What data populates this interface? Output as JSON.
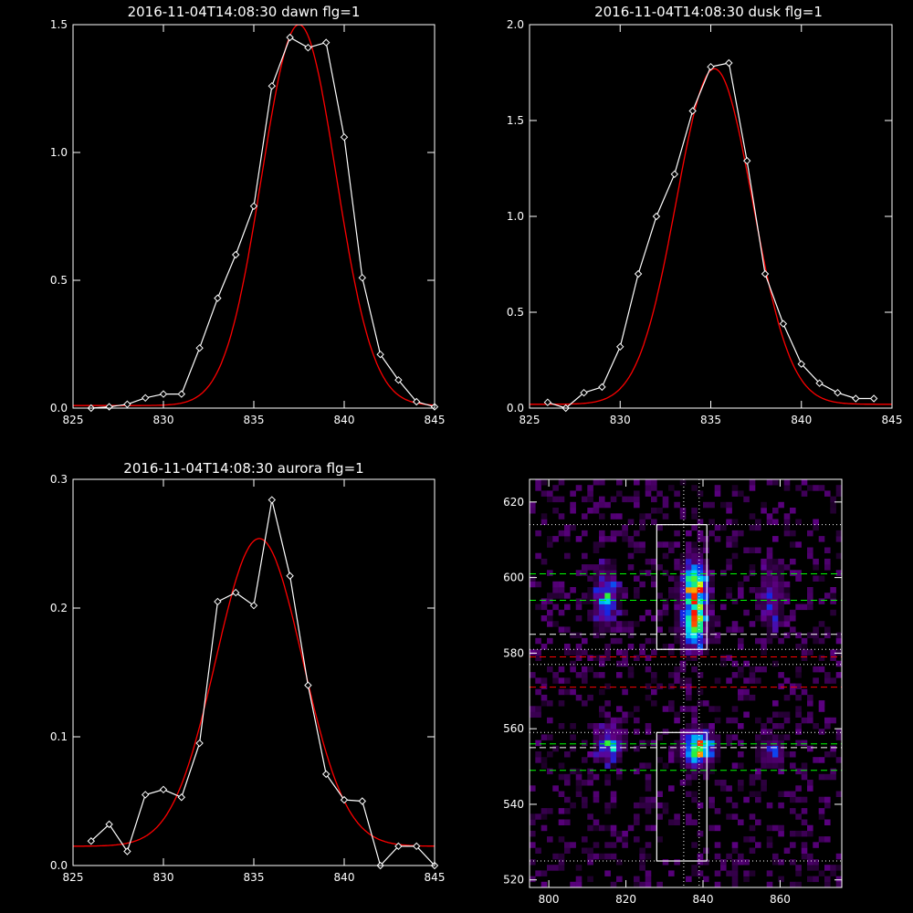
{
  "chart_data": [
    {
      "type": "line",
      "title": "2016-11-04T14:08:30 dawn flg=1",
      "xlim": [
        825,
        845
      ],
      "ylim": [
        0,
        1.5
      ],
      "xticks": [
        "825",
        "830",
        "835",
        "840",
        "845"
      ],
      "yticks": [
        "0.0",
        "0.5",
        "1.0",
        "1.5"
      ],
      "series": [
        {
          "role": "data",
          "color": "#ffffff",
          "marker": "diamond",
          "x": [
            826,
            827,
            828,
            829,
            830,
            831,
            832,
            833,
            834,
            835,
            836,
            837,
            838,
            839,
            840,
            841,
            842,
            843,
            844,
            845
          ],
          "y": [
            0.0,
            0.005,
            0.015,
            0.04,
            0.055,
            0.055,
            0.235,
            0.43,
            0.6,
            0.79,
            1.26,
            1.45,
            1.41,
            1.43,
            1.06,
            0.51,
            0.21,
            0.11,
            0.025,
            0.005
          ]
        },
        {
          "role": "fit",
          "color": "#ff0000",
          "gaussian": {
            "amp": 1.49,
            "center": 837.5,
            "sigma": 2.05,
            "offset": 0.01
          }
        }
      ]
    },
    {
      "type": "line",
      "title": "2016-11-04T14:08:30 dusk flg=1",
      "xlim": [
        825,
        845
      ],
      "ylim": [
        0,
        2.0
      ],
      "xticks": [
        "825",
        "830",
        "835",
        "840",
        "845"
      ],
      "yticks": [
        "0.0",
        "0.5",
        "1.0",
        "1.5",
        "2.0"
      ],
      "series": [
        {
          "role": "data",
          "color": "#ffffff",
          "marker": "diamond",
          "x": [
            826,
            827,
            828,
            829,
            830,
            831,
            832,
            833,
            834,
            835,
            836,
            837,
            838,
            839,
            840,
            841,
            842,
            843,
            844
          ],
          "y": [
            0.03,
            0.0,
            0.08,
            0.11,
            0.32,
            0.7,
            1.0,
            1.22,
            1.55,
            1.78,
            1.8,
            1.29,
            0.7,
            0.44,
            0.23,
            0.13,
            0.08,
            0.05,
            0.05
          ]
        },
        {
          "role": "fit",
          "color": "#ff0000",
          "gaussian": {
            "amp": 1.75,
            "center": 835.2,
            "sigma": 2.1,
            "offset": 0.02
          }
        }
      ]
    },
    {
      "type": "line",
      "title": "2016-11-04T14:08:30 aurora flg=1",
      "xlim": [
        825,
        845
      ],
      "ylim": [
        0,
        0.3
      ],
      "xticks": [
        "825",
        "830",
        "835",
        "840",
        "845"
      ],
      "yticks": [
        "0.0",
        "0.1",
        "0.2",
        "0.3"
      ],
      "series": [
        {
          "role": "data",
          "color": "#ffffff",
          "marker": "diamond",
          "x": [
            826,
            827,
            828,
            829,
            830,
            831,
            832,
            833,
            834,
            835,
            836,
            837,
            838,
            839,
            840,
            841,
            842,
            843,
            844,
            845
          ],
          "y": [
            0.019,
            0.032,
            0.011,
            0.055,
            0.059,
            0.053,
            0.095,
            0.205,
            0.212,
            0.202,
            0.284,
            0.225,
            0.14,
            0.071,
            0.051,
            0.05,
            0.0,
            0.015,
            0.015,
            0.0
          ]
        },
        {
          "role": "fit",
          "color": "#ff0000",
          "gaussian": {
            "amp": 0.239,
            "center": 835.3,
            "sigma": 2.4,
            "offset": 0.015
          }
        }
      ]
    },
    {
      "type": "heatmap",
      "title": "",
      "xlim": [
        795,
        876
      ],
      "ylim": [
        518,
        626
      ],
      "xticks": [
        "800",
        "820",
        "840",
        "860"
      ],
      "yticks": [
        "520",
        "540",
        "560",
        "580",
        "600",
        "620"
      ],
      "blobs": [
        {
          "x": 837,
          "y": 596,
          "sx": 2.2,
          "sy": 5,
          "amp": 1.0
        },
        {
          "x": 837,
          "y": 586,
          "sx": 2.2,
          "sy": 4,
          "amp": 0.75
        },
        {
          "x": 838,
          "y": 554,
          "sx": 2.6,
          "sy": 3,
          "amp": 1.0
        },
        {
          "x": 814,
          "y": 594,
          "sx": 2.0,
          "sy": 5,
          "amp": 0.6
        },
        {
          "x": 815,
          "y": 555,
          "sx": 2.2,
          "sy": 3,
          "amp": 0.6
        },
        {
          "x": 857,
          "y": 594,
          "sx": 2.2,
          "sy": 6,
          "amp": 0.35
        },
        {
          "x": 857,
          "y": 553,
          "sx": 2.2,
          "sy": 3,
          "amp": 0.35
        }
      ],
      "boxes": [
        {
          "x0": 828,
          "x1": 841,
          "y0": 581,
          "y1": 614
        },
        {
          "x0": 828,
          "x1": 841,
          "y0": 525,
          "y1": 559
        }
      ],
      "hlines": [
        {
          "y": 614,
          "color": "#ffffff",
          "style": "dotted"
        },
        {
          "y": 601,
          "color": "#00ff00",
          "style": "dashed"
        },
        {
          "y": 594,
          "color": "#00ff00",
          "style": "dashed"
        },
        {
          "y": 585,
          "color": "#ffffff",
          "style": "dashed"
        },
        {
          "y": 581,
          "color": "#ffffff",
          "style": "dotted"
        },
        {
          "y": 579,
          "color": "#ff0000",
          "style": "dashed"
        },
        {
          "y": 577,
          "color": "#ffffff",
          "style": "dotted"
        },
        {
          "y": 571,
          "color": "#ff0000",
          "style": "dashed"
        },
        {
          "y": 559,
          "color": "#ffffff",
          "style": "dotted"
        },
        {
          "y": 556,
          "color": "#00ff00",
          "style": "dashed"
        },
        {
          "y": 555,
          "color": "#ffffff",
          "style": "dashed"
        },
        {
          "y": 549,
          "color": "#00ff00",
          "style": "dashed"
        },
        {
          "y": 525,
          "color": "#ffffff",
          "style": "dotted"
        }
      ],
      "vlines": [
        {
          "x": 835,
          "color": "#ffffff",
          "style": "dotted"
        },
        {
          "x": 839,
          "color": "#ffffff",
          "style": "dotted"
        }
      ]
    }
  ]
}
